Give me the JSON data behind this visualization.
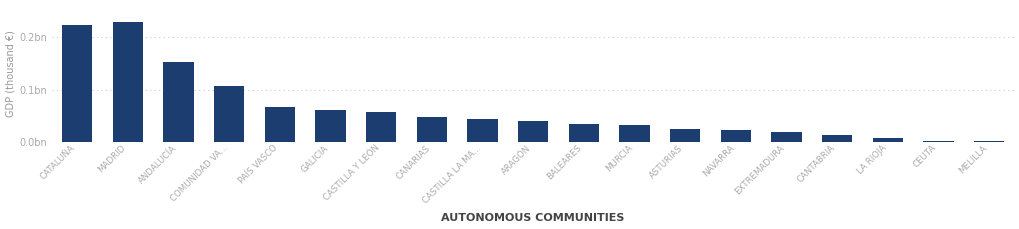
{
  "categories": [
    "CATALUÑA",
    "MADRID",
    "ANDALUCÍA",
    "COMUNIDAD VA...",
    "PAÍS VASCO",
    "GALICIA",
    "CASTILLA Y LEÓN",
    "CANARIAS",
    "CASTILLA LA MA...",
    "ARAGÓN",
    "BALEARES",
    "MURCIA",
    "ASTURIAS",
    "NAVARRA",
    "EXTREMADURA",
    "CANTABRIA",
    "LA RIOJA",
    "CEUTA",
    "MELILLA"
  ],
  "values": [
    223000,
    228000,
    152000,
    107000,
    66000,
    61000,
    58000,
    47000,
    43000,
    40000,
    34000,
    33000,
    24000,
    22000,
    19000,
    14000,
    8000,
    2000,
    1800
  ],
  "bar_color": "#1b3d6f",
  "background_color": "#ffffff",
  "ylabel": "GDP (thousand €)",
  "xlabel": "AUTONOMOUS COMMUNITIES",
  "ylabel_color": "#999999",
  "xlabel_color": "#444444",
  "tick_color": "#aaaaaa",
  "grid_color": "#cccccc",
  "ylim": [
    0,
    260000
  ],
  "yticks": [
    0,
    100000,
    200000
  ],
  "ytick_labels": [
    "0.0bn",
    "0.1bn",
    "0.2bn"
  ]
}
